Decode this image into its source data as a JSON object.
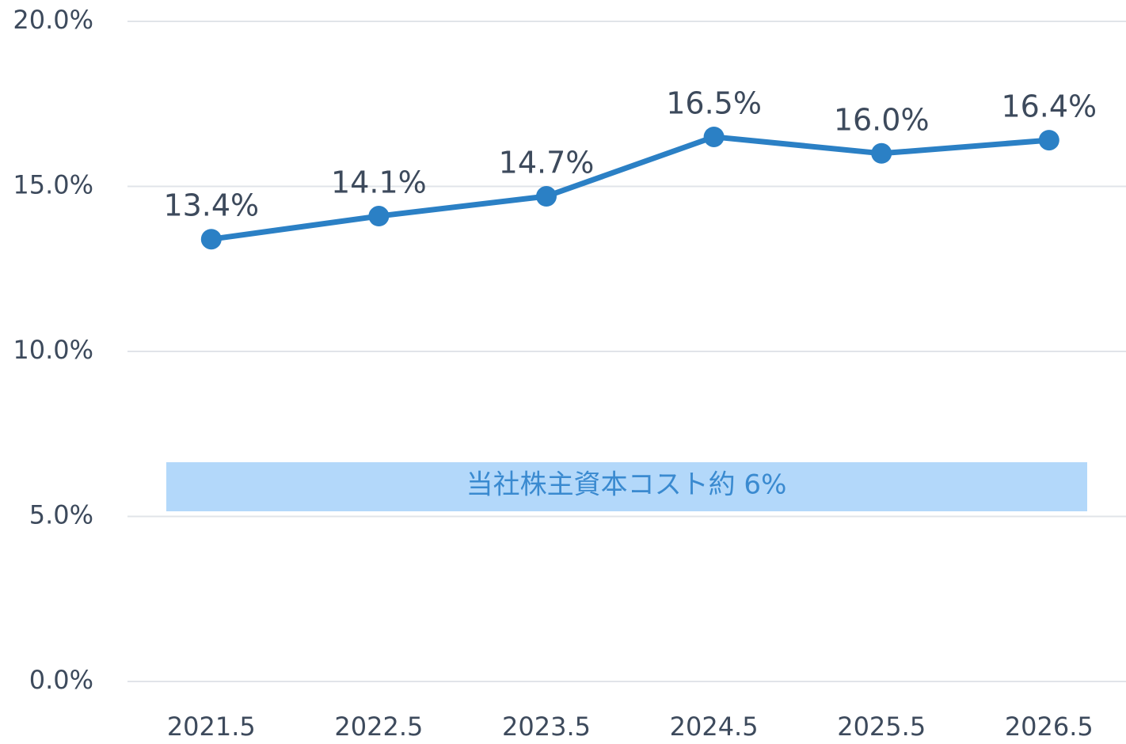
{
  "chart_data": {
    "type": "line",
    "categories": [
      "2021.5",
      "2022.5",
      "2023.5",
      "2024.5",
      "2025.5",
      "2026.5"
    ],
    "series": [
      {
        "color": "#2b80c5",
        "values": [
          13.4,
          14.1,
          14.7,
          16.5,
          16.0,
          16.4
        ],
        "value_labels": [
          "13.4%",
          "14.1%",
          "14.7%",
          "16.5%",
          "16.0%",
          "16.4%"
        ]
      }
    ],
    "ylim": [
      0,
      20
    ],
    "yticks": [
      {
        "value": 0,
        "label": "0.0%"
      },
      {
        "value": 5,
        "label": "5.0%"
      },
      {
        "value": 10,
        "label": "10.0%"
      },
      {
        "value": 15,
        "label": "15.0%"
      },
      {
        "value": 20,
        "label": "20.0%"
      }
    ],
    "grid": true,
    "annotation": "当社株主資本コスト約 6%"
  }
}
